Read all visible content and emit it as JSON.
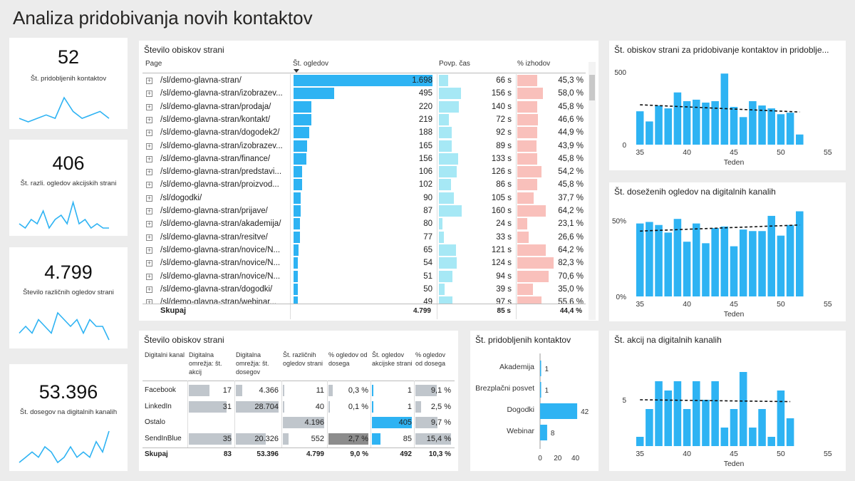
{
  "title": "Analiza pridobivanja novih kontaktov",
  "kpis": [
    {
      "value": "52",
      "label": "Št. pridobljenih kontaktov",
      "spark": [
        3,
        2,
        3,
        4,
        3,
        9,
        5,
        3,
        4,
        5,
        3
      ]
    },
    {
      "value": "406",
      "label": "Št. razli. ogledov akcijskih strani",
      "spark": [
        3,
        2,
        4,
        3,
        6,
        2,
        4,
        5,
        3,
        8,
        3,
        4,
        2,
        3,
        2,
        2
      ]
    },
    {
      "value": "4.799",
      "label": "Število različnih ogledov strani",
      "spark": [
        3,
        4,
        3,
        5,
        4,
        3,
        6,
        5,
        4,
        5,
        3,
        5,
        4,
        4,
        2
      ]
    },
    {
      "value": "53.396",
      "label": "Št. dosegov na digitalnih kanalih",
      "spark": [
        2,
        3,
        4,
        3,
        5,
        4,
        2,
        3,
        5,
        3,
        4,
        3,
        6,
        4,
        8
      ]
    }
  ],
  "pages_table": {
    "title": "Število obiskov strani",
    "headers": {
      "page": "Page",
      "views": "Št. ogledov",
      "time": "Povp. čas",
      "exits": "% izhodov"
    },
    "rows": [
      {
        "page": "/sl/demo-glavna-stran/",
        "views_label": "1.698",
        "views": 1698,
        "time_label": "66 s",
        "time": 66,
        "exits_label": "45,3 %",
        "exits": 45.3
      },
      {
        "page": "/sl/demo-glavna-stran/izobrazev...",
        "views_label": "495",
        "views": 495,
        "time_label": "156 s",
        "time": 156,
        "exits_label": "58,0 %",
        "exits": 58.0
      },
      {
        "page": "/sl/demo-glavna-stran/prodaja/",
        "views_label": "220",
        "views": 220,
        "time_label": "140 s",
        "time": 140,
        "exits_label": "45,8 %",
        "exits": 45.8
      },
      {
        "page": "/sl/demo-glavna-stran/kontakt/",
        "views_label": "219",
        "views": 219,
        "time_label": "72 s",
        "time": 72,
        "exits_label": "46,6 %",
        "exits": 46.6
      },
      {
        "page": "/sl/demo-glavna-stran/dogodek2/",
        "views_label": "188",
        "views": 188,
        "time_label": "92 s",
        "time": 92,
        "exits_label": "44,9 %",
        "exits": 44.9
      },
      {
        "page": "/sl/demo-glavna-stran/izobrazev...",
        "views_label": "165",
        "views": 165,
        "time_label": "89 s",
        "time": 89,
        "exits_label": "43,9 %",
        "exits": 43.9
      },
      {
        "page": "/sl/demo-glavna-stran/finance/",
        "views_label": "156",
        "views": 156,
        "time_label": "133 s",
        "time": 133,
        "exits_label": "45,8 %",
        "exits": 45.8
      },
      {
        "page": "/sl/demo-glavna-stran/predstavi...",
        "views_label": "106",
        "views": 106,
        "time_label": "126 s",
        "time": 126,
        "exits_label": "54,2 %",
        "exits": 54.2
      },
      {
        "page": "/sl/demo-glavna-stran/proizvod...",
        "views_label": "102",
        "views": 102,
        "time_label": "86 s",
        "time": 86,
        "exits_label": "45,8 %",
        "exits": 45.8
      },
      {
        "page": "/sl/dogodki/",
        "views_label": "90",
        "views": 90,
        "time_label": "105 s",
        "time": 105,
        "exits_label": "37,7 %",
        "exits": 37.7
      },
      {
        "page": "/sl/demo-glavna-stran/prijave/",
        "views_label": "87",
        "views": 87,
        "time_label": "160 s",
        "time": 160,
        "exits_label": "64,2 %",
        "exits": 64.2
      },
      {
        "page": "/sl/demo-glavna-stran/akademija/",
        "views_label": "80",
        "views": 80,
        "time_label": "24 s",
        "time": 24,
        "exits_label": "23,1 %",
        "exits": 23.1
      },
      {
        "page": "/sl/demo-glavna-stran/resitve/",
        "views_label": "77",
        "views": 77,
        "time_label": "33 s",
        "time": 33,
        "exits_label": "26,6 %",
        "exits": 26.6
      },
      {
        "page": "/sl/demo-glavna-stran/novice/N...",
        "views_label": "65",
        "views": 65,
        "time_label": "121 s",
        "time": 121,
        "exits_label": "64,2 %",
        "exits": 64.2
      },
      {
        "page": "/sl/demo-glavna-stran/novice/N...",
        "views_label": "54",
        "views": 54,
        "time_label": "124 s",
        "time": 124,
        "exits_label": "82,3 %",
        "exits": 82.3
      },
      {
        "page": "/sl/demo-glavna-stran/novice/N...",
        "views_label": "51",
        "views": 51,
        "time_label": "94 s",
        "time": 94,
        "exits_label": "70,6 %",
        "exits": 70.6
      },
      {
        "page": "/sl/demo-glavna-stran/dogodki/",
        "views_label": "50",
        "views": 50,
        "time_label": "39 s",
        "time": 39,
        "exits_label": "35,0 %",
        "exits": 35.0
      },
      {
        "page": "/sl/demo-glavna-stran/webinar...",
        "views_label": "49",
        "views": 49,
        "time_label": "97 s",
        "time": 97,
        "exits_label": "55,6 %",
        "exits": 55.6
      }
    ],
    "total": {
      "label": "Skupaj",
      "views": "4.799",
      "time": "85 s",
      "exits": "44,4 %"
    }
  },
  "channels_table": {
    "title": "Število obiskov strani",
    "headers": [
      "Digitalni kanal",
      "Digitalna omrežja: št. akcij",
      "Digitalna omrežja: št. dosegov",
      "Št. različnih ogledov strani",
      "% ogledov od dosega",
      "Št. ogledov akcijske strani",
      "% ogledov od dosega"
    ],
    "rows": [
      {
        "name": "Facebook",
        "c1": "17",
        "v1": 17,
        "c2": "4.366",
        "v2": 4366,
        "c3": "11",
        "v3": 11,
        "c4": "0,3 %",
        "v4": 0.3,
        "c5": "1",
        "v5": 1,
        "c6": "9,1 %",
        "v6": 9.1
      },
      {
        "name": "LinkedIn",
        "c1": "31",
        "v1": 31,
        "c2": "28.704",
        "v2": 28704,
        "c3": "40",
        "v3": 40,
        "c4": "0,1 %",
        "v4": 0.1,
        "c5": "1",
        "v5": 1,
        "c6": "2,5 %",
        "v6": 2.5
      },
      {
        "name": "Ostalo",
        "c1": "",
        "v1": 0,
        "c2": "",
        "v2": 0,
        "c3": "4.196",
        "v3": 4196,
        "c4": "",
        "v4": 0,
        "c5": "405",
        "v5": 405,
        "c6": "9,7 %",
        "v6": 9.7
      },
      {
        "name": "SendInBlue",
        "c1": "35",
        "v1": 35,
        "c2": "20.326",
        "v2": 20326,
        "c3": "552",
        "v3": 552,
        "c4": "2,7 %",
        "v4": 2.7,
        "c5": "85",
        "v5": 85,
        "c6": "15,4 %",
        "v6": 15.4
      }
    ],
    "total": {
      "name": "Skupaj",
      "c1": "83",
      "c2": "53.396",
      "c3": "4.799",
      "c4": "9,0 %",
      "c5": "492",
      "c6": "10,3 %"
    }
  },
  "colors": {
    "blue": "#2eb3f3",
    "cyan": "#a6e8f5",
    "pink": "#f9c0bb",
    "gray": "#c0c6cc",
    "darkgray": "#8c8c8c"
  },
  "chart_data": [
    {
      "type": "bar",
      "orientation": "horizontal",
      "title": "Št. pridobljenih kontaktov",
      "categories": [
        "Akademija",
        "Brezplačni posvet",
        "Dogodki",
        "Webinar"
      ],
      "values": [
        1,
        1,
        42,
        8
      ],
      "xticks": [
        "0",
        "20",
        "40"
      ],
      "xlim": [
        0,
        50
      ]
    },
    {
      "type": "bar",
      "title": "Št. obiskov strani za pridobivanje kontaktov in pridoblje...",
      "xlabel": "Teden",
      "x": [
        35,
        36,
        37,
        38,
        39,
        40,
        41,
        42,
        43,
        44,
        45,
        46,
        47,
        48,
        49,
        50,
        51,
        52
      ],
      "values": [
        230,
        160,
        270,
        250,
        360,
        300,
        310,
        290,
        300,
        490,
        260,
        190,
        300,
        270,
        250,
        210,
        220,
        70
      ],
      "trend": [
        275,
        225
      ],
      "xticks": [
        "35",
        "40",
        "45",
        "50",
        "55"
      ],
      "yticks": [
        "0",
        "500"
      ],
      "xlim": [
        34,
        56
      ],
      "ylim": [
        0,
        560
      ]
    },
    {
      "type": "bar",
      "title": "Št. doseženih ogledov na digitalnih kanalih",
      "xlabel": "Teden",
      "x": [
        35,
        36,
        37,
        38,
        39,
        40,
        41,
        42,
        43,
        44,
        45,
        46,
        47,
        48,
        49,
        50,
        51,
        52
      ],
      "values": [
        48,
        49,
        47,
        42,
        51,
        36,
        48,
        35,
        45,
        46,
        33,
        44,
        43,
        43,
        53,
        40,
        47,
        56
      ],
      "trend": [
        43,
        47
      ],
      "xticks": [
        "35",
        "40",
        "45",
        "50",
        "55"
      ],
      "yticks": [
        "0%",
        "50%"
      ],
      "xlim": [
        34,
        56
      ],
      "ylim": [
        0,
        60
      ]
    },
    {
      "type": "bar",
      "title": "Št. akcij na digitalnih kanalih",
      "xlabel": "Teden",
      "x": [
        35,
        36,
        37,
        38,
        39,
        40,
        41,
        42,
        43,
        44,
        45,
        46,
        47,
        48,
        49,
        50,
        51
      ],
      "values": [
        1,
        4,
        7,
        6,
        7,
        4,
        7,
        5,
        7,
        2,
        4,
        8,
        2,
        4,
        1,
        6,
        3
      ],
      "trend": [
        5,
        4.8
      ],
      "xticks": [
        "35",
        "40",
        "45",
        "50",
        "55"
      ],
      "yticks": [
        "5"
      ],
      "xlim": [
        34,
        56
      ],
      "ylim": [
        0,
        10
      ]
    }
  ]
}
